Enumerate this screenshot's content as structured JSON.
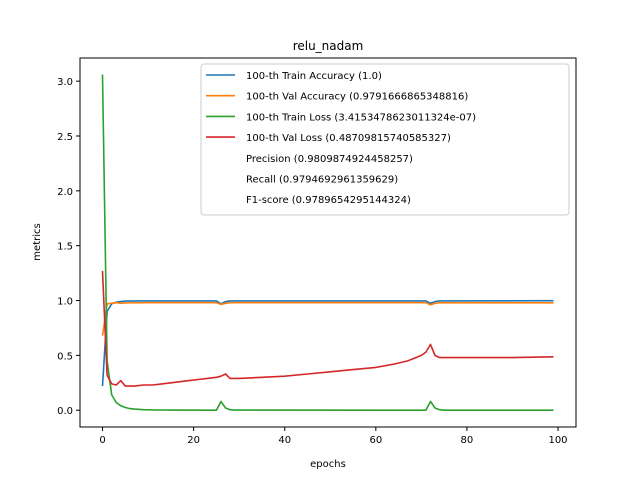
{
  "chart_data": {
    "type": "line",
    "title": "relu_nadam",
    "xlabel": "epochs",
    "ylabel": "metrics",
    "xlim": [
      -4.95,
      103.95
    ],
    "ylim": [
      -0.153,
      3.211
    ],
    "xticks": [
      0,
      20,
      40,
      60,
      80,
      100
    ],
    "yticks": [
      0.0,
      0.5,
      1.0,
      1.5,
      2.0,
      2.5,
      3.0
    ],
    "xtick_labels": [
      "0",
      "20",
      "40",
      "60",
      "80",
      "100"
    ],
    "ytick_labels": [
      "0.0",
      "0.5",
      "1.0",
      "1.5",
      "2.0",
      "2.5",
      "3.0"
    ],
    "grid": false,
    "legend_position": "top-right",
    "legend": [
      {
        "label": "100-th Train Accuracy (1.0)",
        "color": "#1f77b4",
        "line": true
      },
      {
        "label": "100-th Val Accuracy (0.9791666865348816)",
        "color": "#ff7f0e",
        "line": true
      },
      {
        "label": "100-th Train Loss (3.4153478623011324e-07)",
        "color": "#2ca02c",
        "line": true
      },
      {
        "label": "100-th Val Loss (0.48709815740585327)",
        "color": "#d62728",
        "line": true
      },
      {
        "label": "Precision (0.9809874924458257)",
        "color": "none",
        "line": false
      },
      {
        "label": "Recall (0.9794692961359629)",
        "color": "none",
        "line": false
      },
      {
        "label": "F1-score (0.9789654295144324)",
        "color": "none",
        "line": false
      }
    ],
    "series": [
      {
        "name": "100-th Train Accuracy (1.0)",
        "color": "#1f77b4",
        "points": [
          [
            0,
            0.22
          ],
          [
            1,
            0.9
          ],
          [
            2,
            0.97
          ],
          [
            3,
            0.985
          ],
          [
            4,
            0.99
          ],
          [
            5,
            0.995
          ],
          [
            8,
            0.997
          ],
          [
            25,
            0.997
          ],
          [
            26,
            0.97
          ],
          [
            27,
            0.99
          ],
          [
            28,
            0.997
          ],
          [
            71,
            0.997
          ],
          [
            72,
            0.975
          ],
          [
            73,
            0.99
          ],
          [
            74,
            0.997
          ],
          [
            99,
            0.998
          ]
        ]
      },
      {
        "name": "100-th Val Accuracy (0.9791666865348816)",
        "color": "#ff7f0e",
        "points": [
          [
            0,
            0.68
          ],
          [
            1,
            0.97
          ],
          [
            2,
            0.975
          ],
          [
            3,
            0.98
          ],
          [
            4,
            0.975
          ],
          [
            5,
            0.978
          ],
          [
            10,
            0.98
          ],
          [
            25,
            0.98
          ],
          [
            26,
            0.965
          ],
          [
            27,
            0.975
          ],
          [
            28,
            0.98
          ],
          [
            71,
            0.98
          ],
          [
            72,
            0.96
          ],
          [
            73,
            0.975
          ],
          [
            74,
            0.979
          ],
          [
            99,
            0.979
          ]
        ]
      },
      {
        "name": "100-th Train Loss (3.4153478623011324e-07)",
        "color": "#2ca02c",
        "points": [
          [
            0,
            3.06
          ],
          [
            1,
            0.45
          ],
          [
            2,
            0.14
          ],
          [
            3,
            0.07
          ],
          [
            4,
            0.04
          ],
          [
            5,
            0.025
          ],
          [
            6,
            0.015
          ],
          [
            7,
            0.01
          ],
          [
            9,
            0.005
          ],
          [
            12,
            0.002
          ],
          [
            15,
            0.001
          ],
          [
            25,
            0.0
          ],
          [
            26,
            0.08
          ],
          [
            27,
            0.02
          ],
          [
            28,
            0.005
          ],
          [
            29,
            0.001
          ],
          [
            71,
            0.0
          ],
          [
            72,
            0.08
          ],
          [
            73,
            0.02
          ],
          [
            74,
            0.005
          ],
          [
            75,
            0.0
          ],
          [
            99,
            0.0
          ]
        ]
      },
      {
        "name": "100-th Val Loss (0.48709815740585327)",
        "color": "#d62728",
        "points": [
          [
            0,
            1.27
          ],
          [
            1,
            0.32
          ],
          [
            2,
            0.24
          ],
          [
            3,
            0.23
          ],
          [
            4,
            0.27
          ],
          [
            5,
            0.22
          ],
          [
            7,
            0.22
          ],
          [
            9,
            0.23
          ],
          [
            11,
            0.23
          ],
          [
            13,
            0.24
          ],
          [
            15,
            0.25
          ],
          [
            17,
            0.26
          ],
          [
            19,
            0.27
          ],
          [
            21,
            0.28
          ],
          [
            23,
            0.29
          ],
          [
            25,
            0.3
          ],
          [
            26,
            0.31
          ],
          [
            27,
            0.33
          ],
          [
            28,
            0.29
          ],
          [
            30,
            0.29
          ],
          [
            35,
            0.3
          ],
          [
            40,
            0.31
          ],
          [
            45,
            0.33
          ],
          [
            50,
            0.35
          ],
          [
            55,
            0.37
          ],
          [
            60,
            0.39
          ],
          [
            64,
            0.42
          ],
          [
            67,
            0.45
          ],
          [
            70,
            0.5
          ],
          [
            71,
            0.53
          ],
          [
            72,
            0.6
          ],
          [
            73,
            0.5
          ],
          [
            74,
            0.48
          ],
          [
            80,
            0.48
          ],
          [
            90,
            0.48
          ],
          [
            99,
            0.487
          ]
        ]
      }
    ]
  }
}
